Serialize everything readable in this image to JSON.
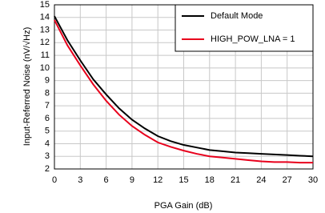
{
  "chart_data": {
    "type": "line",
    "xlabel": "PGA Gain (dB)",
    "ylabel": "Input-Referred Noise (nV/√Hz)",
    "x": [
      0,
      1.5,
      3,
      4.5,
      6,
      7.5,
      9,
      10.5,
      12,
      13.5,
      15,
      16.5,
      18,
      19.5,
      21,
      22.5,
      24,
      25.5,
      27,
      28.5,
      30
    ],
    "series": [
      {
        "name": "Default Mode",
        "color": "#000000",
        "values": [
          14.1,
          12.2,
          10.6,
          9.1,
          7.9,
          6.8,
          5.9,
          5.2,
          4.6,
          4.2,
          3.9,
          3.7,
          3.5,
          3.4,
          3.3,
          3.25,
          3.2,
          3.15,
          3.1,
          3.05,
          3.0
        ]
      },
      {
        "name": "HIGH_POW_LNA = 1",
        "color": "#e8001c",
        "values": [
          13.8,
          11.8,
          10.2,
          8.7,
          7.4,
          6.3,
          5.4,
          4.7,
          4.1,
          3.75,
          3.45,
          3.2,
          3.0,
          2.9,
          2.8,
          2.7,
          2.6,
          2.55,
          2.55,
          2.5,
          2.5
        ]
      }
    ],
    "xlim": [
      0,
      30
    ],
    "xticks": [
      0,
      3,
      6,
      9,
      12,
      15,
      18,
      21,
      24,
      27,
      30
    ],
    "ylim": [
      2,
      15
    ],
    "yticks": [
      2,
      3,
      4,
      5,
      6,
      7,
      8,
      9,
      10,
      11,
      12,
      13,
      14,
      15
    ],
    "grid": true,
    "legend": "upper right"
  }
}
